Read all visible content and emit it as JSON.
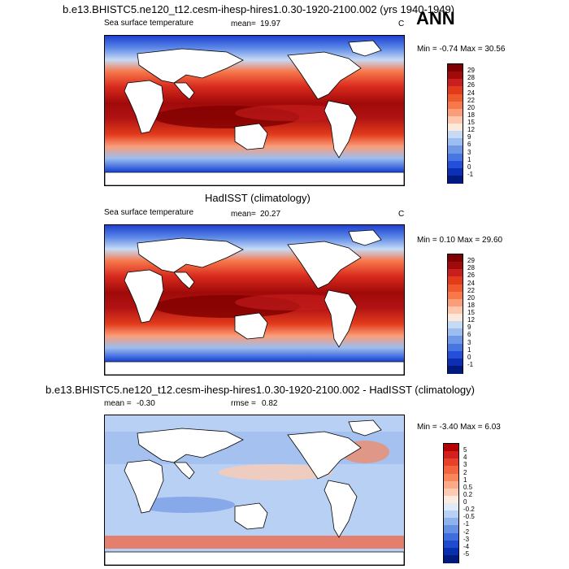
{
  "header": {
    "case_title": "b.e13.BHISTC5.ne120_t12.cesm-ihesp-hires1.0.30-1920-2100.002 (yrs 1940-1949)",
    "season": "ANN"
  },
  "chart_data": [
    {
      "type": "heatmap",
      "title": "b.e13.BHISTC5.ne120_t12.cesm-ihesp-hires1.0.30-1920-2100.002 (yrs 1940-1949)",
      "variable": "Sea surface temperature",
      "mean_label": "mean=",
      "mean": "19.97",
      "units": "C",
      "minmax": "Min =  -0.74 Max =   30.56",
      "colorbar": [
        "29",
        "28",
        "26",
        "24",
        "22",
        "20",
        "18",
        "15",
        "12",
        "9",
        "6",
        "3",
        "1",
        "0",
        "-1"
      ],
      "colors": [
        "#7f0000",
        "#a10a0a",
        "#c81e1e",
        "#e23b1b",
        "#f0592e",
        "#f7784b",
        "#fb9d78",
        "#fdc7ad",
        "#fde8dc",
        "#c6daf5",
        "#9bbdef",
        "#6f98e8",
        "#4775e2",
        "#2450d9",
        "#0d2fb3",
        "#001a80"
      ]
    },
    {
      "type": "heatmap",
      "title": "HadISST (climatology)",
      "variable": "Sea surface temperature",
      "mean_label": "mean=",
      "mean": "20.27",
      "units": "C",
      "minmax": "Min =   0.10 Max =   29.60",
      "colorbar": [
        "29",
        "28",
        "26",
        "24",
        "22",
        "20",
        "18",
        "15",
        "12",
        "9",
        "6",
        "3",
        "1",
        "0",
        "-1"
      ],
      "colors": [
        "#7f0000",
        "#a10a0a",
        "#c81e1e",
        "#e23b1b",
        "#f0592e",
        "#f7784b",
        "#fb9d78",
        "#fdc7ad",
        "#fde8dc",
        "#c6daf5",
        "#9bbdef",
        "#6f98e8",
        "#4775e2",
        "#2450d9",
        "#0d2fb3",
        "#001a80"
      ]
    },
    {
      "type": "heatmap",
      "title": "b.e13.BHISTC5.ne120_t12.cesm-ihesp-hires1.0.30-1920-2100.002 - HadISST (climatology)",
      "mean_label": "mean =",
      "mean": "-0.30",
      "rmse_label": "rmse =",
      "rmse": "0.82",
      "minmax": "Min =  -3.40 Max =    6.03",
      "colorbar": [
        "5",
        "4",
        "3",
        "2",
        "1",
        "0.5",
        "0.2",
        "0",
        "-0.2",
        "-0.5",
        "-1",
        "-2",
        "-3",
        "-4",
        "-5"
      ],
      "colors": [
        "#b30000",
        "#d21f1f",
        "#e8412a",
        "#f2643f",
        "#f8865c",
        "#fbaa87",
        "#fdcbb3",
        "#feebe0",
        "#e0ebfa",
        "#b8d0f3",
        "#8fb2ec",
        "#6690e4",
        "#3f6ddb",
        "#1f4bcf",
        "#0a2fae",
        "#001a80"
      ]
    }
  ]
}
